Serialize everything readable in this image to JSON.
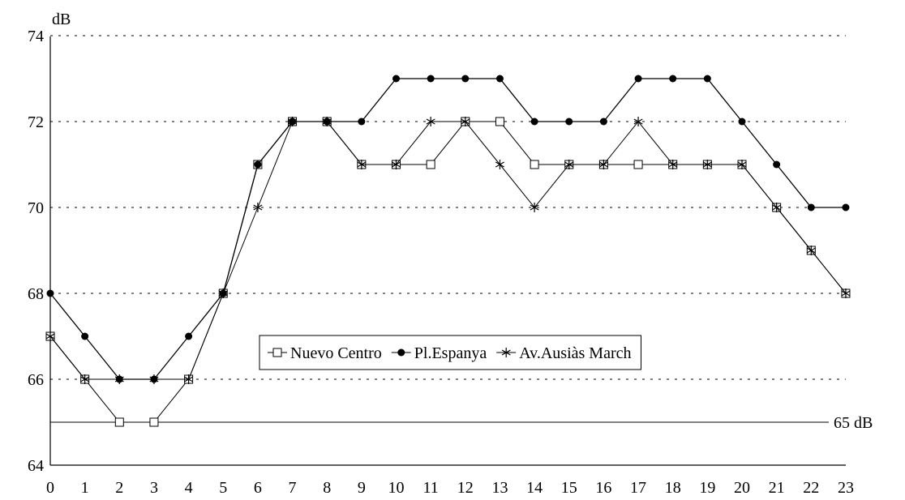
{
  "chart_data": {
    "type": "line",
    "ylabel": "dB",
    "ylim": [
      64,
      74
    ],
    "yticks": [
      64,
      66,
      68,
      70,
      72,
      74
    ],
    "x": [
      0,
      1,
      2,
      3,
      4,
      5,
      6,
      7,
      8,
      9,
      10,
      11,
      12,
      13,
      14,
      15,
      16,
      17,
      18,
      19,
      20,
      21,
      22,
      23
    ],
    "grid": "horizontal-dashed",
    "legend_position": "center",
    "reference_line": {
      "value": 65,
      "label": "65 dB"
    },
    "series": [
      {
        "name": "Nuevo Centro",
        "marker": "open-square",
        "values": [
          67,
          66,
          65,
          65,
          66,
          68,
          71,
          72,
          72,
          71,
          71,
          71,
          72,
          72,
          71,
          71,
          71,
          71,
          71,
          71,
          71,
          70,
          69,
          68
        ]
      },
      {
        "name": "Pl.Espanya",
        "marker": "filled-circle",
        "values": [
          68,
          67,
          66,
          66,
          67,
          68,
          71,
          72,
          72,
          72,
          73,
          73,
          73,
          73,
          72,
          72,
          72,
          73,
          73,
          73,
          72,
          71,
          70,
          70
        ]
      },
      {
        "name": "Av.Ausiàs March",
        "marker": "star",
        "values": [
          67,
          66,
          66,
          66,
          66,
          68,
          70,
          72,
          72,
          71,
          71,
          72,
          72,
          71,
          70,
          71,
          71,
          72,
          71,
          71,
          71,
          70,
          69,
          68
        ]
      }
    ]
  }
}
